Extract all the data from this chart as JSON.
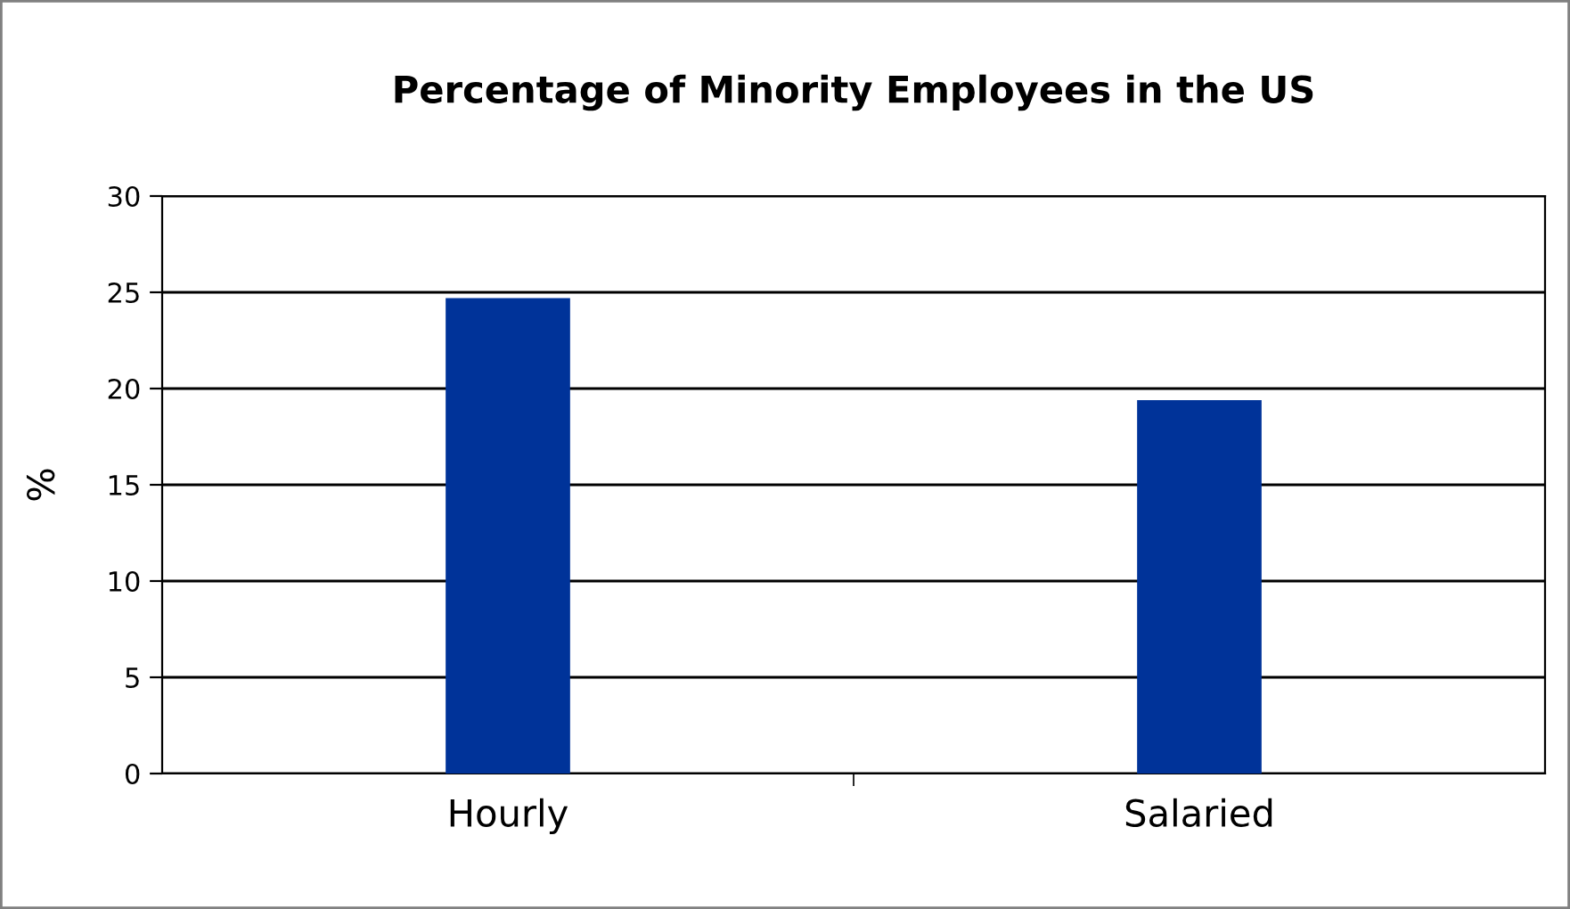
{
  "chart_data": {
    "type": "bar",
    "title": "Percentage of Minority Employees in the US",
    "ylabel": "%",
    "categories": [
      "Hourly",
      "Salaried"
    ],
    "values": [
      24.7,
      19.4
    ],
    "color": "#003399",
    "ylim": [
      0,
      30
    ],
    "yticks": [
      0,
      5,
      10,
      15,
      20,
      25,
      30
    ],
    "grid": "y",
    "legend": false
  }
}
